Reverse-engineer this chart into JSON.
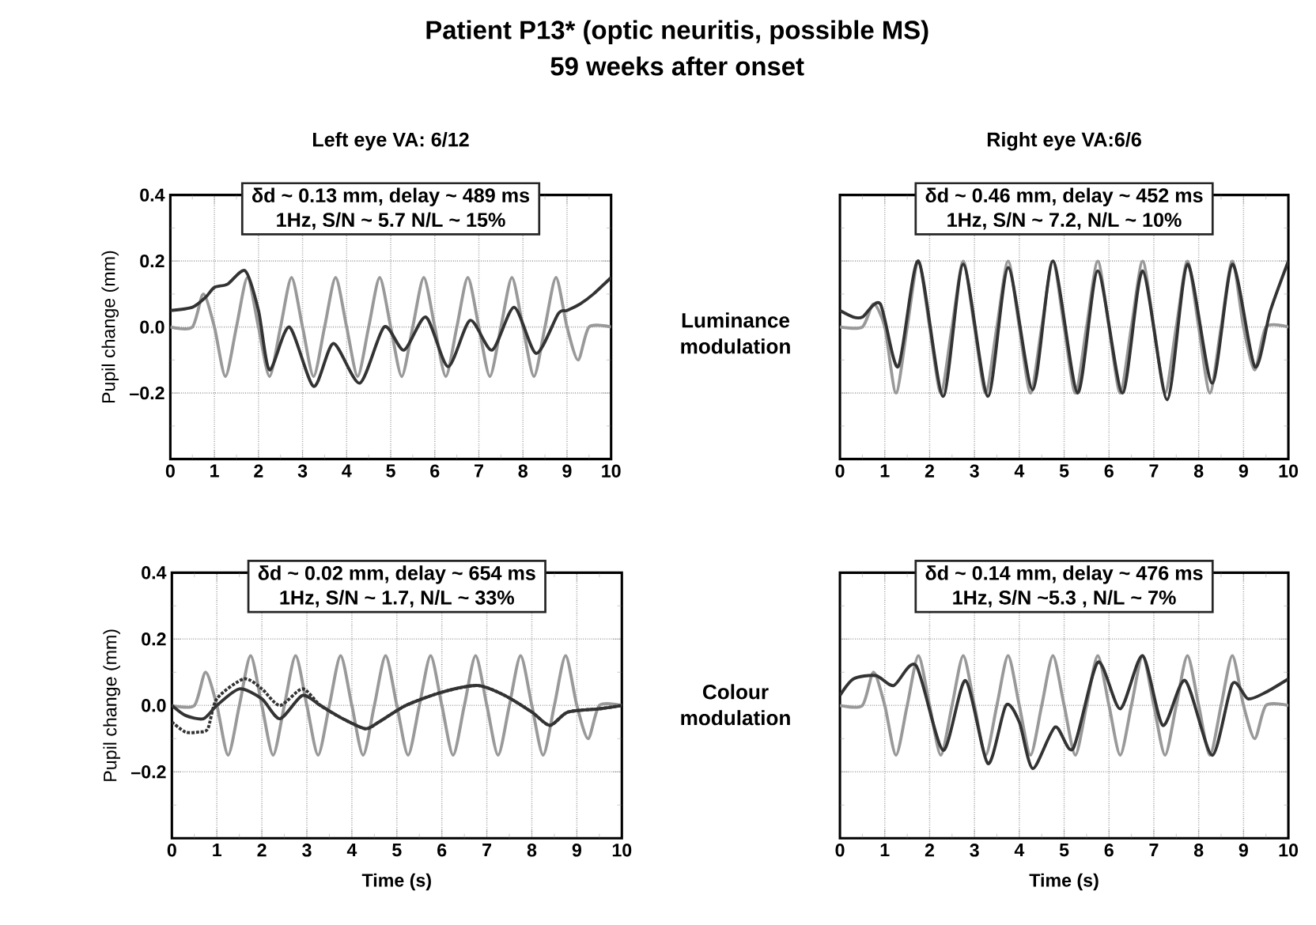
{
  "chart_data": [
    {
      "type": "line",
      "title": "Left eye VA: 6/12",
      "ylabel": "Pupil change (mm)",
      "annotations": [
        "δd ~ 0.13 mm, delay ~ 489 ms",
        "1Hz, S/N ~ 5.7  N/L ~ 15%",
        "Patient P13* (optic neuritis, possible MS)",
        "59 weeks after onset"
      ],
      "xlim": [
        0,
        10
      ],
      "ylim": [
        -0.4,
        0.4
      ],
      "xticks": [
        0,
        {
          "value": 0.5,
          "label": null
        },
        1,
        {
          "value": 1.5,
          "label": null
        },
        2,
        {
          "value": 2.5,
          "label": null
        },
        3,
        {
          "value": 3.5,
          "label": null
        },
        4,
        {
          "value": 4.5,
          "label": null
        },
        5,
        {
          "value": 5.5,
          "label": null
        },
        6,
        {
          "value": 6.5,
          "label": null
        },
        7,
        {
          "value": 7.5,
          "label": null
        },
        8,
        {
          "value": 8.5,
          "label": null
        },
        9,
        {
          "value": 9.5,
          "label": null
        },
        10
      ],
      "yticks": [
        {
          "value": -0.3,
          "label": null
        },
        {
          "value": -0.2,
          "label": "–0.2"
        },
        {
          "value": -0.1,
          "label": null
        },
        {
          "value": 0,
          "label": "0.0"
        },
        {
          "value": 0.1,
          "label": null
        },
        {
          "value": 0.2,
          "label": "0.2"
        },
        {
          "value": 0.3,
          "label": null
        },
        {
          "value": 0.4,
          "label": "0.4"
        }
      ],
      "grid": true,
      "series": [
        {
          "color": "#999999",
          "x": [
            0,
            0.5,
            0.75,
            1,
            1.25,
            1.5,
            1.75,
            2,
            2.25,
            2.5,
            2.75,
            3,
            3.25,
            3.5,
            3.75,
            4,
            4.25,
            4.5,
            4.75,
            5,
            5.25,
            5.5,
            5.75,
            6,
            6.25,
            6.5,
            6.75,
            7,
            7.25,
            7.5,
            7.75,
            8,
            8.25,
            8.5,
            8.75,
            9,
            9.25,
            9.5,
            10
          ],
          "values": [
            0,
            0,
            0.1,
            0,
            -0.15,
            0,
            0.15,
            0,
            -0.15,
            0,
            0.15,
            0,
            -0.15,
            0,
            0.15,
            0,
            -0.15,
            0,
            0.15,
            0,
            -0.15,
            0,
            0.15,
            0,
            -0.15,
            0,
            0.15,
            0,
            -0.15,
            0,
            0.15,
            0,
            -0.15,
            0,
            0.15,
            0,
            -0.1,
            0,
            0
          ]
        },
        {
          "color": "#333333",
          "x": [
            0,
            0.5,
            0.8,
            1.0,
            1.3,
            1.7,
            2.0,
            2.25,
            2.7,
            3.25,
            3.7,
            4.3,
            4.85,
            5.3,
            5.8,
            6.3,
            6.8,
            7.3,
            7.8,
            8.3,
            8.8,
            9.0,
            9.3,
            9.6,
            10
          ],
          "values": [
            0.05,
            0.06,
            0.09,
            0.12,
            0.13,
            0.17,
            0.05,
            -0.13,
            0.0,
            -0.18,
            -0.05,
            -0.17,
            0.0,
            -0.07,
            0.03,
            -0.12,
            0.02,
            -0.07,
            0.06,
            -0.08,
            0.04,
            0.05,
            0.07,
            0.1,
            0.15
          ]
        }
      ]
    },
    {
      "type": "line",
      "title": "Right eye VA:6/6",
      "annotations": [
        "δd ~ 0.46 mm, delay ~ 452 ms",
        "1Hz, S/N ~ 7.2, N/L ~ 10%",
        "Luminance modulation"
      ],
      "xlim": [
        0,
        10
      ],
      "ylim": [
        -0.4,
        0.4
      ],
      "xticks": [
        0,
        {
          "value": 0.5,
          "label": null
        },
        1,
        {
          "value": 1.5,
          "label": null
        },
        2,
        {
          "value": 2.5,
          "label": null
        },
        3,
        {
          "value": 3.5,
          "label": null
        },
        4,
        {
          "value": 4.5,
          "label": null
        },
        5,
        {
          "value": 5.5,
          "label": null
        },
        6,
        {
          "value": 6.5,
          "label": null
        },
        7,
        {
          "value": 7.5,
          "label": null
        },
        8,
        {
          "value": 8.5,
          "label": null
        },
        9,
        {
          "value": 9.5,
          "label": null
        },
        10
      ],
      "yticks": [
        {
          "value": -0.3,
          "label": null
        },
        -0.2,
        {
          "value": -0.1,
          "label": null
        },
        0,
        {
          "value": 0.1,
          "label": null
        },
        0.2,
        {
          "value": 0.3,
          "label": null
        },
        0.4
      ],
      "grid": true,
      "tick_labels": "x",
      "series": [
        {
          "color": "#999999",
          "x": [
            0,
            0.5,
            0.75,
            1,
            1.25,
            1.5,
            1.75,
            2,
            2.25,
            2.5,
            2.75,
            3,
            3.25,
            3.5,
            3.75,
            4,
            4.25,
            4.5,
            4.75,
            5,
            5.25,
            5.5,
            5.75,
            6,
            6.25,
            6.5,
            6.75,
            7,
            7.25,
            7.5,
            7.75,
            8,
            8.25,
            8.5,
            8.75,
            9,
            9.25,
            9.5,
            10
          ],
          "values": [
            0,
            0,
            0.07,
            0,
            -0.2,
            0,
            0.2,
            0,
            -0.2,
            0,
            0.2,
            0,
            -0.2,
            0,
            0.2,
            0,
            -0.2,
            0,
            0.2,
            0,
            -0.2,
            0,
            0.2,
            0,
            -0.2,
            0,
            0.2,
            0,
            -0.2,
            0,
            0.2,
            0,
            -0.2,
            0,
            0.2,
            0,
            -0.13,
            0,
            0
          ]
        },
        {
          "color": "#333333",
          "x": [
            0,
            0.3,
            0.5,
            0.9,
            1.3,
            1.75,
            2.3,
            2.75,
            3.3,
            3.75,
            4.3,
            4.75,
            5.3,
            5.75,
            6.3,
            6.75,
            7.3,
            7.75,
            8.3,
            8.75,
            9.25,
            9.6,
            10
          ],
          "values": [
            0.05,
            0.03,
            0.03,
            0.07,
            -0.12,
            0.2,
            -0.21,
            0.19,
            -0.21,
            0.18,
            -0.19,
            0.2,
            -0.2,
            0.17,
            -0.2,
            0.17,
            -0.22,
            0.19,
            -0.17,
            0.19,
            -0.12,
            0.05,
            0.2
          ]
        }
      ]
    },
    {
      "type": "line",
      "xlabel": "Time (s)",
      "ylabel": "Pupil change (mm)",
      "annotations": [
        "δd ~ 0.02 mm, delay ~ 654 ms",
        "1Hz, S/N ~ 1.7, N/L ~ 33%"
      ],
      "xlim": [
        0,
        10
      ],
      "ylim": [
        -0.4,
        0.4
      ],
      "xticks": [
        0,
        {
          "value": 0.5,
          "label": null
        },
        1,
        {
          "value": 1.5,
          "label": null
        },
        2,
        {
          "value": 2.5,
          "label": null
        },
        3,
        {
          "value": 3.5,
          "label": null
        },
        4,
        {
          "value": 4.5,
          "label": null
        },
        5,
        {
          "value": 5.5,
          "label": null
        },
        6,
        {
          "value": 6.5,
          "label": null
        },
        7,
        {
          "value": 7.5,
          "label": null
        },
        8,
        {
          "value": 8.5,
          "label": null
        },
        9,
        {
          "value": 9.5,
          "label": null
        },
        10
      ],
      "yticks": [
        {
          "value": -0.3,
          "label": null
        },
        {
          "value": -0.2,
          "label": "–0.2"
        },
        {
          "value": -0.1,
          "label": null
        },
        {
          "value": 0,
          "label": "0.0"
        },
        {
          "value": 0.1,
          "label": null
        },
        {
          "value": 0.2,
          "label": "0.2"
        },
        {
          "value": 0.3,
          "label": null
        },
        {
          "value": 0.4,
          "label": "0.4"
        }
      ],
      "grid": true,
      "series": [
        {
          "color": "#999999",
          "x": [
            0,
            0.5,
            0.75,
            1,
            1.25,
            1.5,
            1.75,
            2,
            2.25,
            2.5,
            2.75,
            3,
            3.25,
            3.5,
            3.75,
            4,
            4.25,
            4.5,
            4.75,
            5,
            5.25,
            5.5,
            5.75,
            6,
            6.25,
            6.5,
            6.75,
            7,
            7.25,
            7.5,
            7.75,
            8,
            8.25,
            8.5,
            8.75,
            9,
            9.25,
            9.5,
            10
          ],
          "values": [
            0,
            0,
            0.1,
            0,
            -0.15,
            0,
            0.15,
            0,
            -0.15,
            0,
            0.15,
            0,
            -0.15,
            0,
            0.15,
            0,
            -0.15,
            0,
            0.15,
            0,
            -0.15,
            0,
            0.15,
            0,
            -0.15,
            0,
            0.15,
            0,
            -0.15,
            0,
            0.15,
            0,
            -0.15,
            0,
            0.15,
            0,
            -0.1,
            0,
            0
          ]
        },
        {
          "color": "#333333",
          "line_style": "dotted",
          "x": [
            0,
            0.3,
            0.6,
            0.8,
            1.0,
            1.6,
            2.0,
            2.4,
            2.9,
            3.3,
            3.8,
            4.3,
            4.6,
            5.2,
            6.0,
            6.8,
            7.4,
            8.0,
            8.4,
            8.8,
            9.5,
            10
          ],
          "values": [
            -0.05,
            -0.08,
            -0.08,
            -0.07,
            0.02,
            0.08,
            0.05,
            0.0,
            0.05,
            0.0,
            -0.04,
            -0.07,
            -0.05,
            0.0,
            0.04,
            0.06,
            0.03,
            -0.02,
            -0.06,
            -0.02,
            -0.01,
            0.0
          ]
        },
        {
          "color": "#333333",
          "x": [
            0,
            0.3,
            0.7,
            1.0,
            1.5,
            2.0,
            2.4,
            2.9,
            3.3,
            3.8,
            4.3,
            4.6,
            5.2,
            6.0,
            6.8,
            7.4,
            8.0,
            8.4,
            8.8,
            9.5,
            10
          ],
          "values": [
            0.0,
            -0.03,
            -0.04,
            0.0,
            0.05,
            0.02,
            -0.04,
            0.03,
            0.0,
            -0.04,
            -0.07,
            -0.05,
            0.0,
            0.04,
            0.06,
            0.03,
            -0.02,
            -0.06,
            -0.02,
            -0.01,
            0.0
          ]
        }
      ]
    },
    {
      "type": "line",
      "xlabel": "Time (s)",
      "annotations": [
        "δd ~ 0.14 mm, delay ~ 476 ms",
        "1Hz, S/N ~5.3 , N/L ~ 7%",
        "Colour modulation"
      ],
      "xlim": [
        0,
        10
      ],
      "ylim": [
        -0.4,
        0.4
      ],
      "xticks": [
        0,
        {
          "value": 0.5,
          "label": null
        },
        1,
        {
          "value": 1.5,
          "label": null
        },
        2,
        {
          "value": 2.5,
          "label": null
        },
        3,
        {
          "value": 3.5,
          "label": null
        },
        4,
        {
          "value": 4.5,
          "label": null
        },
        5,
        {
          "value": 5.5,
          "label": null
        },
        6,
        {
          "value": 6.5,
          "label": null
        },
        7,
        {
          "value": 7.5,
          "label": null
        },
        8,
        {
          "value": 8.5,
          "label": null
        },
        9,
        {
          "value": 9.5,
          "label": null
        },
        10
      ],
      "yticks": [
        {
          "value": -0.3,
          "label": null
        },
        -0.2,
        {
          "value": -0.1,
          "label": null
        },
        0,
        {
          "value": 0.1,
          "label": null
        },
        0.2,
        {
          "value": 0.3,
          "label": null
        },
        0.4
      ],
      "grid": true,
      "tick_labels": "x",
      "series": [
        {
          "color": "#999999",
          "x": [
            0,
            0.5,
            0.75,
            1,
            1.25,
            1.5,
            1.75,
            2,
            2.25,
            2.5,
            2.75,
            3,
            3.25,
            3.5,
            3.75,
            4,
            4.25,
            4.5,
            4.75,
            5,
            5.25,
            5.5,
            5.75,
            6,
            6.25,
            6.5,
            6.75,
            7,
            7.25,
            7.5,
            7.75,
            8,
            8.25,
            8.5,
            8.75,
            9,
            9.25,
            9.5,
            10
          ],
          "values": [
            0,
            0,
            0.1,
            0,
            -0.15,
            0,
            0.15,
            0,
            -0.15,
            0,
            0.15,
            0,
            -0.15,
            0,
            0.15,
            0,
            -0.15,
            0,
            0.15,
            0,
            -0.15,
            0,
            0.15,
            0,
            -0.15,
            0,
            0.15,
            0,
            -0.15,
            0,
            0.15,
            0,
            -0.15,
            0,
            0.15,
            0,
            -0.1,
            0,
            0
          ]
        },
        {
          "color": "#333333",
          "x": [
            0,
            0.3,
            0.8,
            1.2,
            1.7,
            2.3,
            2.8,
            3.3,
            3.7,
            4.0,
            4.3,
            4.8,
            5.2,
            5.75,
            6.25,
            6.75,
            7.2,
            7.7,
            8.3,
            8.75,
            9.1,
            9.5,
            10
          ],
          "values": [
            0.03,
            0.08,
            0.09,
            0.06,
            0.12,
            -0.135,
            0.075,
            -0.175,
            0.0,
            -0.05,
            -0.19,
            -0.065,
            -0.13,
            0.13,
            -0.01,
            0.15,
            -0.06,
            0.075,
            -0.15,
            0.065,
            0.02,
            0.04,
            0.08
          ]
        }
      ]
    }
  ]
}
